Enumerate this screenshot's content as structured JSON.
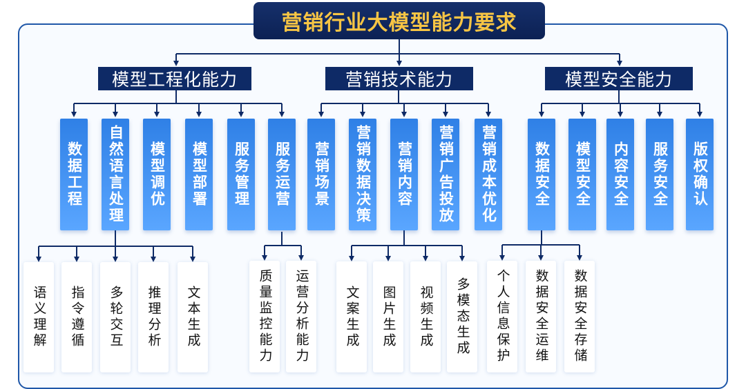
{
  "title": "营销行业大模型能力要求",
  "categories": [
    {
      "label": "模型工程化能力"
    },
    {
      "label": "营销技术能力"
    },
    {
      "label": "模型安全能力"
    }
  ],
  "modules": [
    "数据工程",
    "自然语言处理",
    "模型调优",
    "模型部署",
    "服务管理",
    "服务运营",
    "营销场景",
    "营销数据决策",
    "营销内容",
    "营销广告投放",
    "营销成本优化",
    "数据安全",
    "模型安全",
    "内容安全",
    "服务安全",
    "版权确认"
  ],
  "leaves": [
    "语义理解",
    "指令遵循",
    "多轮交互",
    "推理分析",
    "文本生成",
    "质量监控能力",
    "运营分析能力",
    "文案生成",
    "图片生成",
    "视频生成",
    "多模态生成",
    "个人信息保护",
    "数据安全运维",
    "数据安全存储"
  ],
  "colors": {
    "title_bg": "#0e2a66",
    "title_text": "#f7c544",
    "category_bg": "#0e2a66",
    "module_gradient": [
      "#2f80e6",
      "#5aa6ff"
    ],
    "connector": "#0e2a66",
    "frame": "#1f57a8"
  }
}
